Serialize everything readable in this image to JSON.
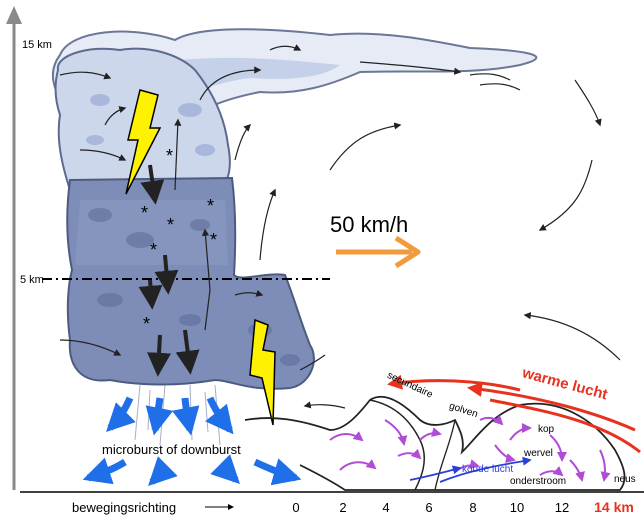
{
  "altitude": {
    "top": "15 km",
    "mid": "5 km"
  },
  "speed": "50 km/h",
  "labels": {
    "microburst": "microburst of downburst",
    "warm_air": "warme lucht",
    "secondary": "secundaire",
    "waves": "golven",
    "head": "kop",
    "vortex": "wervel",
    "cold_air": "koude lucht",
    "undercurrent": "onderstroom",
    "nose": "neus"
  },
  "axis": {
    "direction_label": "bewegingsrichting",
    "ticks": [
      "0",
      "2",
      "4",
      "6",
      "8",
      "10",
      "12"
    ],
    "last_tick": "14 km"
  },
  "colors": {
    "upper_cloud": "#cdd7ec",
    "lower_cloud": "#7d8db8",
    "downburst": "#1f6fe8",
    "warm_arrow": "#e8321e",
    "cold_arrow": "#2a3fd6",
    "swirl": "#b04cd6",
    "speed_arrow": "#f39a3c",
    "lightning": "#fff200"
  }
}
